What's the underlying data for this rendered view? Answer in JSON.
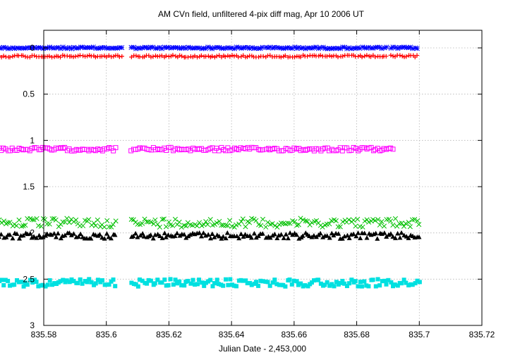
{
  "chart_data": {
    "type": "scatter",
    "title": "AM CVn field, unfiltered 4-pix diff mag, Apr 10 2006 UT",
    "xlabel": "Julian Date - 2,453,000",
    "ylabel": "",
    "xlim": [
      835.58,
      835.72
    ],
    "ylim": [
      3,
      -0.2
    ],
    "y_inverted": true,
    "grid": true,
    "legend": "none",
    "x_ticks": [
      "835.58",
      "835.6",
      "835.62",
      "835.64",
      "835.66",
      "835.68",
      "835.7",
      "835.72"
    ],
    "x_tick_values": [
      835.58,
      835.6,
      835.62,
      835.64,
      835.66,
      835.68,
      835.7,
      835.72
    ],
    "y_ticks": [
      "0",
      "0.5",
      "1",
      "1.5",
      "2",
      "2.5",
      "3"
    ],
    "y_tick_values": [
      0,
      0.5,
      1,
      1.5,
      2,
      2.5,
      3
    ],
    "series": [
      {
        "marker": "asterisk",
        "color": "#0000ff",
        "level": 0.0,
        "scatter": 0.006,
        "segments": [
          [
            835.556,
            835.605
          ],
          [
            835.608,
            835.65
          ],
          [
            835.651,
            835.69
          ],
          [
            835.691,
            835.7
          ]
        ],
        "step": 0.0007
      },
      {
        "marker": "plus",
        "color": "#ff0000",
        "level": 0.09,
        "scatter": 0.007,
        "segments": [
          [
            835.556,
            835.605
          ],
          [
            835.608,
            835.65
          ],
          [
            835.651,
            835.69
          ],
          [
            835.691,
            835.7
          ]
        ],
        "step": 0.0007
      },
      {
        "marker": "open-square",
        "color": "#ff00ff",
        "level": 1.095,
        "scatter": 0.012,
        "segments": [
          [
            835.556,
            835.603
          ],
          [
            835.608,
            835.65
          ],
          [
            835.651,
            835.692
          ]
        ],
        "step": 0.0007
      },
      {
        "marker": "cross",
        "color": "#00c000",
        "level": 1.89,
        "scatter": 0.03,
        "segments": [
          [
            835.556,
            835.603
          ],
          [
            835.608,
            835.65
          ],
          [
            835.651,
            835.7
          ]
        ],
        "step": 0.0007
      },
      {
        "marker": "filled-triangle",
        "color": "#000000",
        "level": 2.03,
        "scatter": 0.02,
        "segments": [
          [
            835.556,
            835.603
          ],
          [
            835.608,
            835.65
          ],
          [
            835.651,
            835.7
          ]
        ],
        "step": 0.0007
      },
      {
        "marker": "filled-square",
        "color": "#00e0e0",
        "level": 2.54,
        "scatter": 0.025,
        "segments": [
          [
            835.556,
            835.603
          ],
          [
            835.608,
            835.65
          ],
          [
            835.651,
            835.7
          ]
        ],
        "step": 0.0007
      }
    ]
  }
}
